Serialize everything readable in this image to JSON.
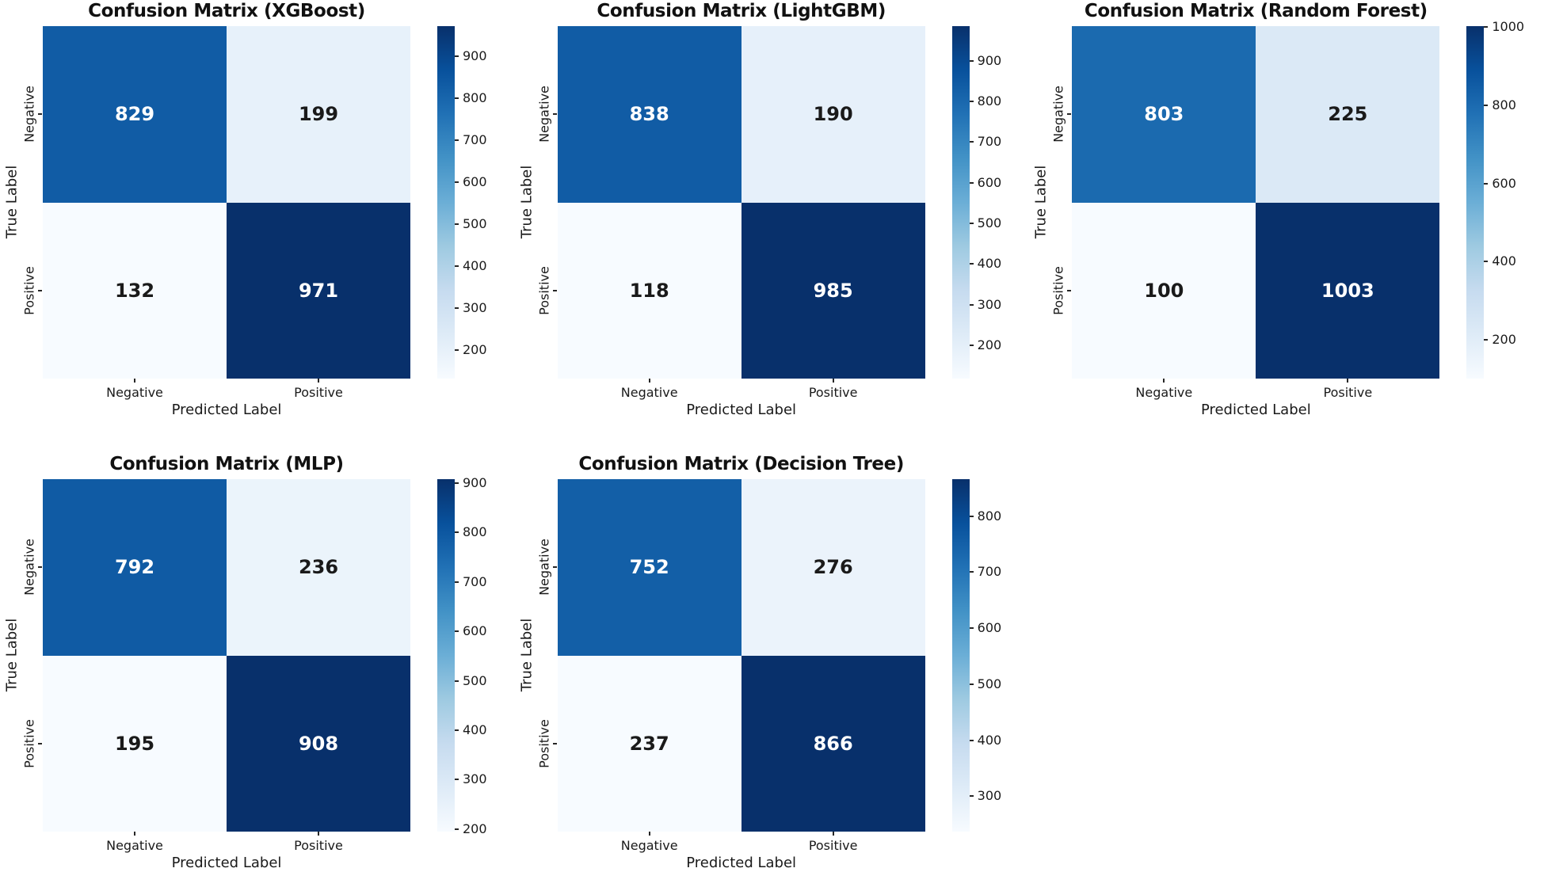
{
  "figure": {
    "background": "#ffffff",
    "colormap": "Blues",
    "colormap_anchors": [
      "#f7fbff",
      "#deebf7",
      "#c6dbef",
      "#9ecae1",
      "#6baed6",
      "#4292c6",
      "#2171b5",
      "#08519c",
      "#08306b"
    ],
    "annotation_color_dark": "#1a1a1a",
    "annotation_color_light": "#ffffff",
    "axis_text_color": "#1a1a1a"
  },
  "chart_data": [
    {
      "type": "heatmap",
      "title": "Confusion Matrix (XGBoost)",
      "xlabel": "Predicted Label",
      "ylabel": "True Label",
      "x_ticklabels": [
        "Negative",
        "Positive"
      ],
      "y_ticklabels": [
        "Negative",
        "Positive"
      ],
      "matrix": [
        [
          829,
          199
        ],
        [
          132,
          971
        ]
      ],
      "vmin": 132,
      "vmax": 971,
      "colorbar_ticks": [
        200,
        300,
        400,
        500,
        600,
        700,
        800,
        900
      ],
      "legend_position": "right-colorbar",
      "grid_position": {
        "row": 0,
        "col": 0
      }
    },
    {
      "type": "heatmap",
      "title": "Confusion Matrix (LightGBM)",
      "xlabel": "Predicted Label",
      "ylabel": "True Label",
      "x_ticklabels": [
        "Negative",
        "Positive"
      ],
      "y_ticklabels": [
        "Negative",
        "Positive"
      ],
      "matrix": [
        [
          838,
          190
        ],
        [
          118,
          985
        ]
      ],
      "vmin": 118,
      "vmax": 985,
      "colorbar_ticks": [
        200,
        300,
        400,
        500,
        600,
        700,
        800,
        900
      ],
      "legend_position": "right-colorbar",
      "grid_position": {
        "row": 0,
        "col": 1
      }
    },
    {
      "type": "heatmap",
      "title": "Confusion Matrix (Random Forest)",
      "xlabel": "Predicted Label",
      "ylabel": "True Label",
      "x_ticklabels": [
        "Negative",
        "Positive"
      ],
      "y_ticklabels": [
        "Negative",
        "Positive"
      ],
      "matrix": [
        [
          803,
          225
        ],
        [
          100,
          1003
        ]
      ],
      "vmin": 100,
      "vmax": 1003,
      "colorbar_ticks": [
        200,
        400,
        600,
        800,
        1000
      ],
      "legend_position": "right-colorbar",
      "grid_position": {
        "row": 0,
        "col": 2
      }
    },
    {
      "type": "heatmap",
      "title": "Confusion Matrix (MLP)",
      "xlabel": "Predicted Label",
      "ylabel": "True Label",
      "x_ticklabels": [
        "Negative",
        "Positive"
      ],
      "y_ticklabels": [
        "Negative",
        "Positive"
      ],
      "matrix": [
        [
          792,
          236
        ],
        [
          195,
          908
        ]
      ],
      "vmin": 195,
      "vmax": 908,
      "colorbar_ticks": [
        200,
        300,
        400,
        500,
        600,
        700,
        800,
        900
      ],
      "legend_position": "right-colorbar",
      "grid_position": {
        "row": 1,
        "col": 0
      }
    },
    {
      "type": "heatmap",
      "title": "Confusion Matrix (Decision Tree)",
      "xlabel": "Predicted Label",
      "ylabel": "True Label",
      "x_ticklabels": [
        "Negative",
        "Positive"
      ],
      "y_ticklabels": [
        "Negative",
        "Positive"
      ],
      "matrix": [
        [
          752,
          276
        ],
        [
          237,
          866
        ]
      ],
      "vmin": 237,
      "vmax": 866,
      "colorbar_ticks": [
        300,
        400,
        500,
        600,
        700,
        800
      ],
      "legend_position": "right-colorbar",
      "grid_position": {
        "row": 1,
        "col": 1
      }
    }
  ]
}
